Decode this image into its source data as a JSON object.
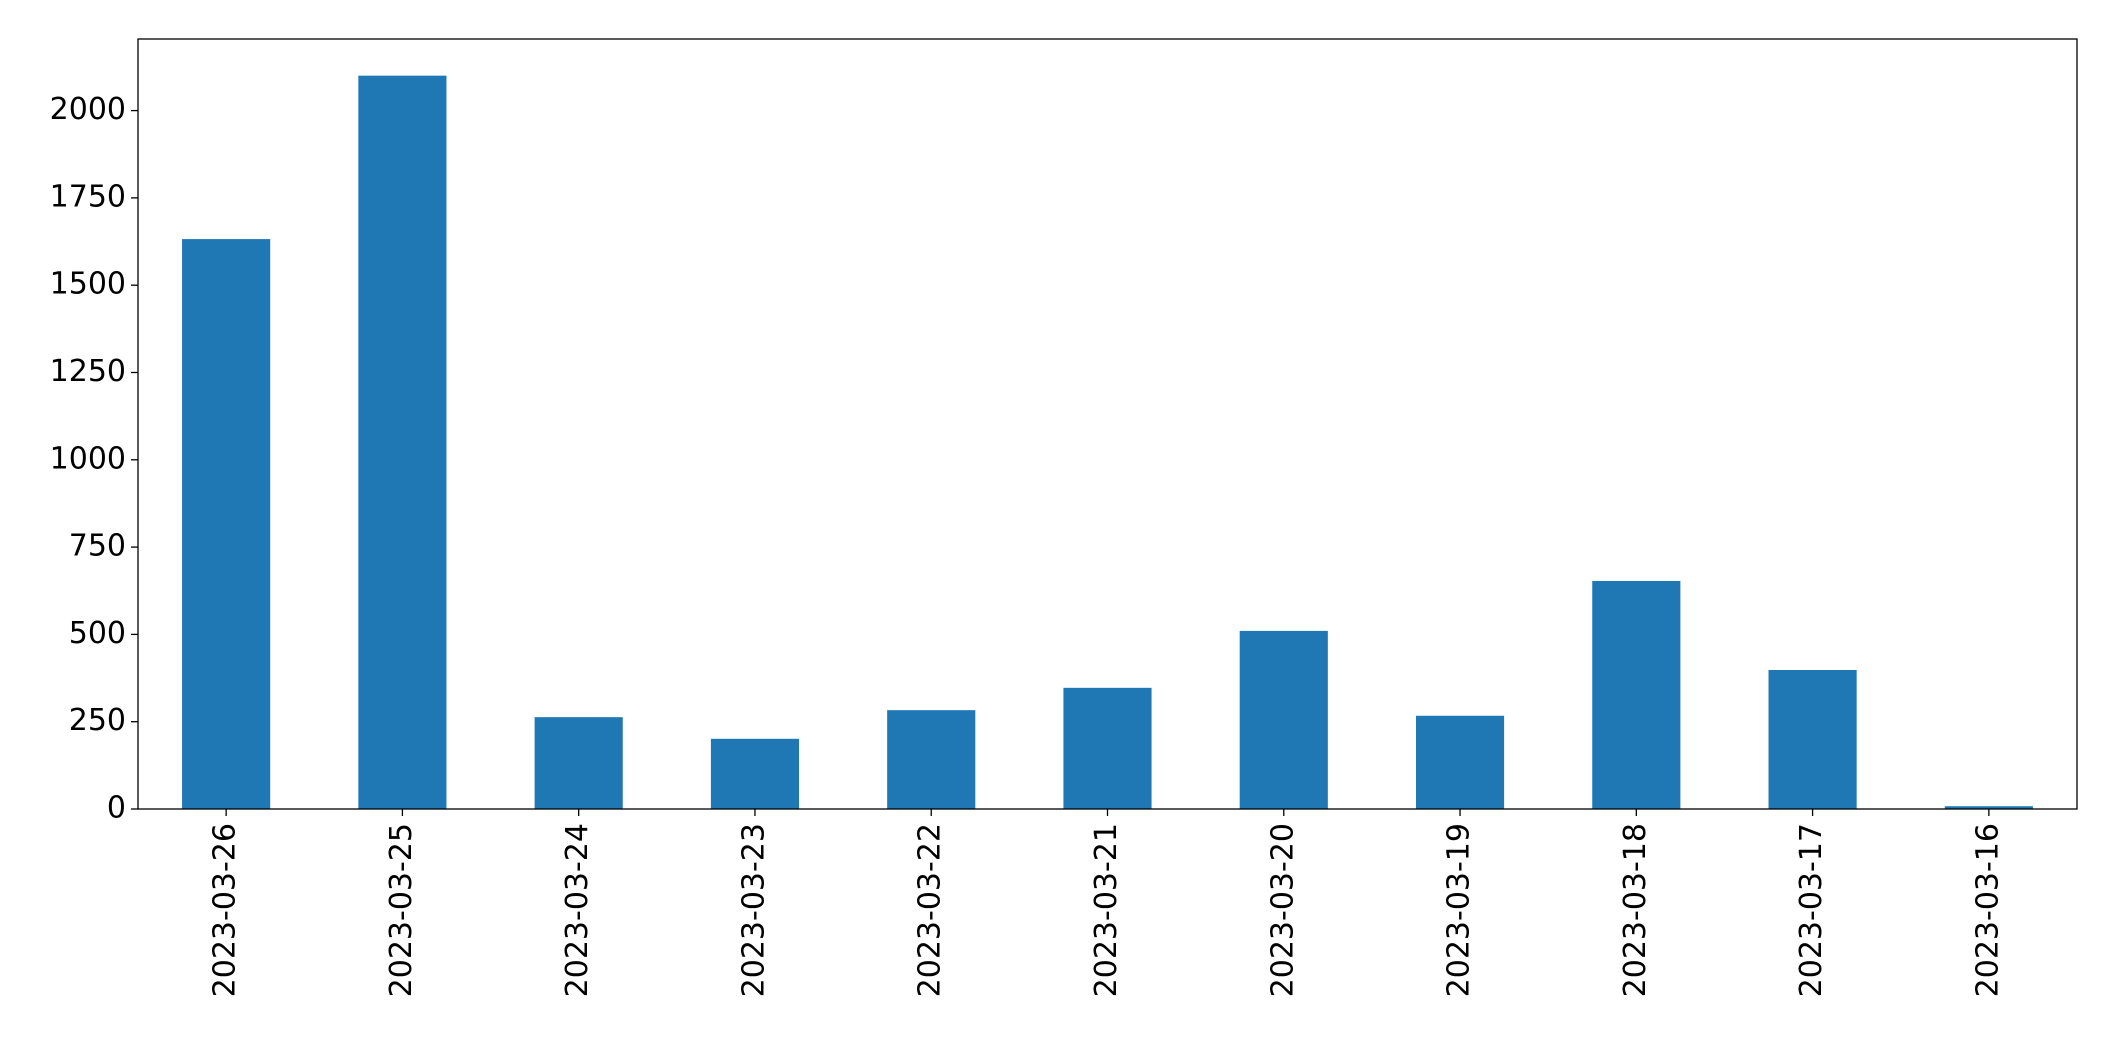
{
  "chart_data": {
    "type": "bar",
    "categories": [
      "2023-03-26",
      "2023-03-25",
      "2023-03-24",
      "2023-03-23",
      "2023-03-22",
      "2023-03-21",
      "2023-03-20",
      "2023-03-19",
      "2023-03-18",
      "2023-03-17",
      "2023-03-16"
    ],
    "values": [
      1632,
      2100,
      263,
      201,
      283,
      347,
      510,
      267,
      653,
      398,
      8
    ],
    "color": "#1f77b4",
    "ylim": [
      0,
      2205
    ],
    "yticks": [
      0,
      250,
      500,
      750,
      1000,
      1250,
      1500,
      1750,
      2000
    ],
    "grid": false
  }
}
